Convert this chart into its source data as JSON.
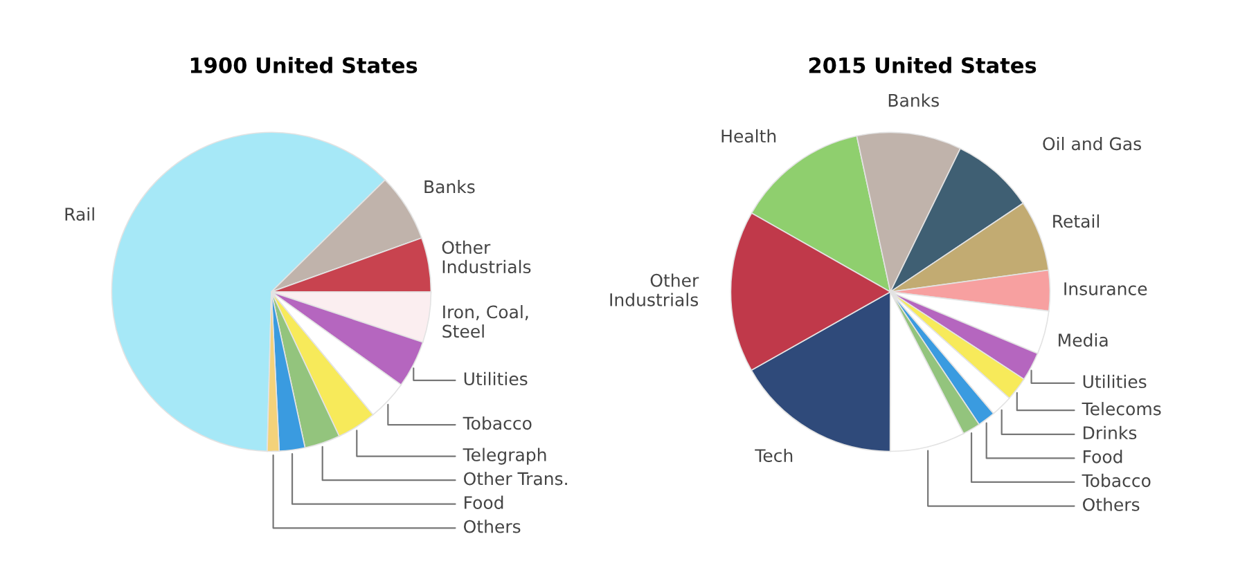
{
  "chart_data": [
    {
      "type": "pie",
      "title": "1900 United States",
      "categories": [
        "Rail",
        "Banks",
        "Other\nIndustrials",
        "Iron, Coal,\nSteel",
        "Utilities",
        "Tobacco",
        "Telegraph",
        "Other Trans.",
        "Food",
        "Others"
      ],
      "values": [
        62.2,
        6.9,
        5.5,
        5.1,
        4.8,
        4.1,
        4.0,
        3.6,
        2.6,
        1.2
      ],
      "colors": [
        "#a6e8f7",
        "#c0b3ab",
        "#c8434f",
        "#fbeef0",
        "#b566bf",
        "#ffffff",
        "#f7ea5a",
        "#93c47d",
        "#3a9be0",
        "#f4d27a"
      ],
      "legend": false
    },
    {
      "type": "pie",
      "title": "2015 United States",
      "categories": [
        "Health",
        "Banks",
        "Oil and Gas",
        "Retail",
        "Insurance",
        "Media",
        "Utilities",
        "Telecoms",
        "Drinks",
        "Food",
        "Tobacco",
        "Others",
        "Tech",
        "Other\nIndustrials"
      ],
      "values": [
        13.4,
        10.6,
        8.4,
        7.2,
        4.1,
        4.4,
        2.9,
        2.4,
        2.2,
        1.8,
        1.8,
        7.6,
        16.8,
        16.4
      ],
      "colors": [
        "#8fcf6e",
        "#c0b3ab",
        "#3f5f73",
        "#c2ab72",
        "#f7a0a0",
        "#ffffff",
        "#b566bf",
        "#f7ea5a",
        "#ffffff",
        "#3a9be0",
        "#93c47d",
        "#ffffff",
        "#2f4a7a",
        "#c0394a"
      ],
      "legend": false
    }
  ]
}
